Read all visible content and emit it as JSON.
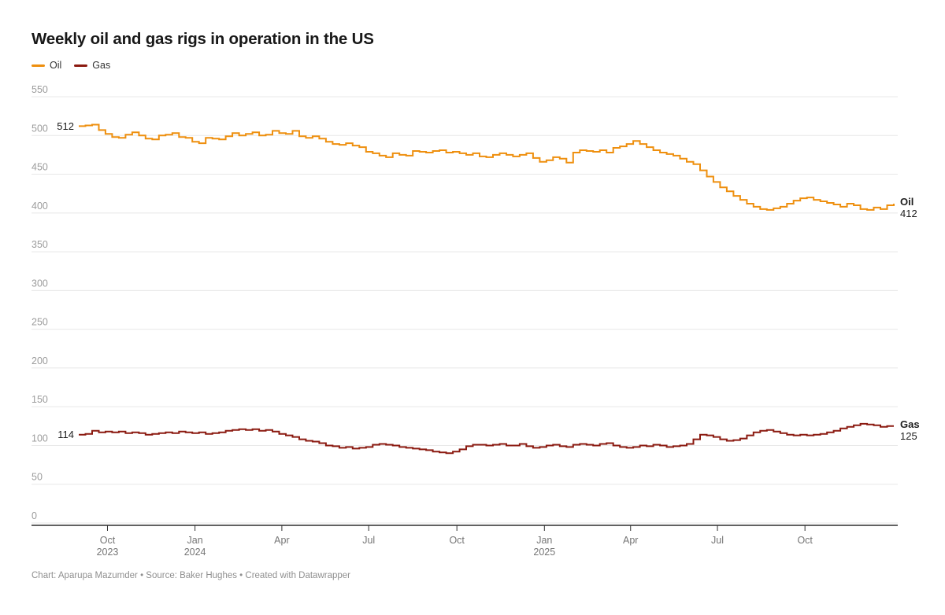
{
  "title": "Weekly oil and gas rigs in operation in the US",
  "legend": [
    {
      "label": "Oil",
      "color": "#EE8F0E"
    },
    {
      "label": "Gas",
      "color": "#8B1A10"
    }
  ],
  "footer": "Chart: Aparupa Mazumder • Source: Baker Hughes • Created with Datawrapper",
  "colors": {
    "oil": "#EE8F0E",
    "gas": "#8B1A10",
    "gridline": "#e8e8e8",
    "axis": "#2f2f2f",
    "y_label": "#9c9c9c",
    "x_label": "#757575",
    "annotation": "#1d1d1d"
  },
  "chart_data": {
    "type": "line",
    "step": true,
    "title": "Weekly oil and gas rigs in operation in the US",
    "xlabel": "",
    "ylabel": "",
    "ylim": [
      0,
      550
    ],
    "grid": true,
    "legend_position": "top-left",
    "y_ticks": [
      0,
      50,
      100,
      150,
      200,
      250,
      300,
      350,
      400,
      450,
      500,
      550
    ],
    "x_range_weeks": 122,
    "x_ticks": [
      {
        "label": "Oct",
        "year": "2023",
        "week": 4.3
      },
      {
        "label": "Jan",
        "year": "2024",
        "week": 17.4
      },
      {
        "label": "Apr",
        "year": "",
        "week": 30.4
      },
      {
        "label": "Jul",
        "year": "",
        "week": 43.4
      },
      {
        "label": "Oct",
        "year": "",
        "week": 56.6
      },
      {
        "label": "Jan",
        "year": "2025",
        "week": 69.7
      },
      {
        "label": "Apr",
        "year": "",
        "week": 82.6
      },
      {
        "label": "Jul",
        "year": "",
        "week": 95.6
      },
      {
        "label": "Oct",
        "year": "",
        "week": 108.7
      }
    ],
    "series": [
      {
        "name": "Oil",
        "color": "#EE8F0E",
        "start_label": "512",
        "end_label_title": "Oil",
        "end_label_value": "412",
        "values": [
          512,
          513,
          514,
          507,
          502,
          498,
          497,
          501,
          504,
          500,
          496,
          495,
          500,
          501,
          503,
          498,
          497,
          492,
          490,
          497,
          496,
          495,
          499,
          503,
          500,
          502,
          504,
          500,
          501,
          506,
          503,
          502,
          506,
          499,
          497,
          499,
          496,
          492,
          489,
          488,
          490,
          487,
          485,
          479,
          477,
          474,
          472,
          477,
          475,
          474,
          480,
          479,
          478,
          480,
          481,
          478,
          479,
          477,
          475,
          477,
          473,
          472,
          475,
          477,
          475,
          473,
          475,
          477,
          471,
          466,
          468,
          472,
          470,
          465,
          478,
          481,
          480,
          479,
          481,
          478,
          484,
          486,
          489,
          493,
          489,
          485,
          481,
          478,
          476,
          474,
          470,
          466,
          463,
          455,
          447,
          440,
          433,
          428,
          422,
          417,
          412,
          408,
          405,
          404,
          406,
          408,
          412,
          416,
          419,
          420,
          417,
          415,
          413,
          411,
          408,
          412,
          410,
          405,
          404,
          407,
          405,
          410,
          412
        ]
      },
      {
        "name": "Gas",
        "color": "#8B1A10",
        "start_label": "114",
        "end_label_title": "Gas",
        "end_label_value": "125",
        "values": [
          114,
          115,
          119,
          117,
          118,
          117,
          118,
          116,
          117,
          116,
          114,
          115,
          116,
          117,
          116,
          118,
          117,
          116,
          117,
          115,
          116,
          117,
          119,
          120,
          121,
          120,
          121,
          119,
          120,
          118,
          115,
          113,
          111,
          108,
          106,
          105,
          103,
          100,
          99,
          97,
          98,
          96,
          97,
          98,
          101,
          102,
          101,
          100,
          98,
          97,
          96,
          95,
          94,
          92,
          91,
          90,
          92,
          95,
          99,
          101,
          101,
          100,
          101,
          102,
          100,
          100,
          102,
          99,
          97,
          98,
          100,
          101,
          99,
          98,
          101,
          102,
          101,
          100,
          102,
          103,
          100,
          98,
          97,
          98,
          100,
          99,
          101,
          100,
          98,
          99,
          100,
          102,
          108,
          114,
          113,
          111,
          108,
          106,
          107,
          109,
          113,
          117,
          119,
          120,
          118,
          116,
          114,
          113,
          114,
          113,
          114,
          115,
          117,
          119,
          122,
          124,
          126,
          128,
          127,
          126,
          124,
          125,
          125
        ]
      }
    ]
  }
}
